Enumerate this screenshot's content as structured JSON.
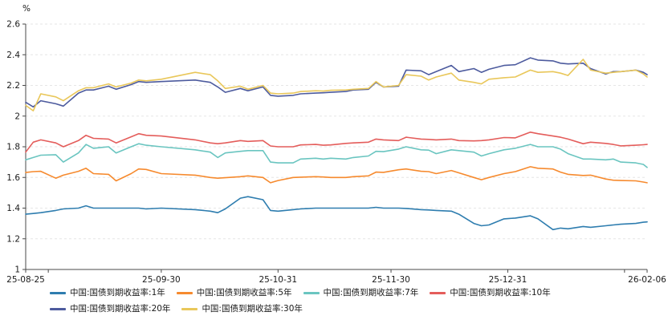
{
  "chart_data": {
    "type": "line",
    "title": "",
    "unit_label": "%",
    "xlabel": "",
    "ylabel": "",
    "ylim": [
      1,
      2.6
    ],
    "yticks": [
      "1",
      "1.2",
      "1.4",
      "1.6",
      "1.8",
      "2",
      "2.2",
      "2.4",
      "2.6"
    ],
    "grid": "horizontal-dashed",
    "legend_position": "bottom-left",
    "x_domain": [
      "25-08-25",
      "26-02-06"
    ],
    "xticks": [
      {
        "date": "25-08-25",
        "label": "25-08-25"
      },
      {
        "date": "25-08-31",
        "label": ""
      },
      {
        "date": "25-09-30",
        "label": "25-09-30"
      },
      {
        "date": "25-10-31",
        "label": "25-10-31"
      },
      {
        "date": "25-11-30",
        "label": "25-11-30"
      },
      {
        "date": "25-12-31",
        "label": "25-12-31"
      },
      {
        "date": "26-01-31",
        "label": ""
      },
      {
        "date": "26-02-06",
        "label": "26-02-06"
      }
    ],
    "x_dates": [
      "25-08-25",
      "25-08-27",
      "25-08-29",
      "25-09-02",
      "25-09-04",
      "25-09-08",
      "25-09-10",
      "25-09-12",
      "25-09-16",
      "25-09-18",
      "25-09-22",
      "25-09-24",
      "25-09-26",
      "25-09-30",
      "25-10-09",
      "25-10-13",
      "25-10-15",
      "25-10-17",
      "25-10-21",
      "25-10-23",
      "25-10-27",
      "25-10-29",
      "25-10-31",
      "25-11-04",
      "25-11-06",
      "25-11-10",
      "25-11-12",
      "25-11-14",
      "25-11-18",
      "25-11-20",
      "25-11-24",
      "25-11-26",
      "25-11-28",
      "25-12-02",
      "25-12-04",
      "25-12-08",
      "25-12-10",
      "25-12-12",
      "25-12-16",
      "25-12-18",
      "25-12-22",
      "25-12-24",
      "25-12-26",
      "25-12-30",
      "26-01-02",
      "26-01-06",
      "26-01-08",
      "26-01-12",
      "26-01-14",
      "26-01-16",
      "26-01-20",
      "26-01-22",
      "26-01-26",
      "26-01-28",
      "26-01-30",
      "26-02-03",
      "26-02-05",
      "26-02-06"
    ],
    "series": [
      {
        "id": "1y",
        "name": "中国:国债到期收益率:1年",
        "color": "#2e7daf",
        "values": [
          1.36,
          1.365,
          1.37,
          1.385,
          1.395,
          1.4,
          1.415,
          1.4,
          1.4,
          1.4,
          1.4,
          1.4,
          1.395,
          1.4,
          1.39,
          1.38,
          1.37,
          1.395,
          1.465,
          1.475,
          1.455,
          1.385,
          1.38,
          1.39,
          1.395,
          1.4,
          1.4,
          1.4,
          1.4,
          1.4,
          1.4,
          1.405,
          1.4,
          1.4,
          1.398,
          1.39,
          1.388,
          1.385,
          1.38,
          1.36,
          1.3,
          1.285,
          1.29,
          1.33,
          1.335,
          1.35,
          1.33,
          1.26,
          1.27,
          1.265,
          1.28,
          1.275,
          1.285,
          1.29,
          1.295,
          1.3,
          1.308,
          1.31
        ]
      },
      {
        "id": "5y",
        "name": "中国:国债到期收益率:5年",
        "color": "#f68a2e",
        "values": [
          1.632,
          1.638,
          1.64,
          1.595,
          1.615,
          1.64,
          1.66,
          1.625,
          1.62,
          1.578,
          1.625,
          1.655,
          1.652,
          1.625,
          1.615,
          1.6,
          1.595,
          1.598,
          1.605,
          1.61,
          1.6,
          1.565,
          1.58,
          1.6,
          1.602,
          1.605,
          1.603,
          1.6,
          1.6,
          1.605,
          1.61,
          1.635,
          1.633,
          1.65,
          1.655,
          1.64,
          1.638,
          1.625,
          1.645,
          1.63,
          1.6,
          1.585,
          1.6,
          1.625,
          1.638,
          1.67,
          1.66,
          1.655,
          1.635,
          1.62,
          1.613,
          1.615,
          1.59,
          1.582,
          1.58,
          1.578,
          1.57,
          1.565
        ]
      },
      {
        "id": "7y",
        "name": "中国:国债到期收益率:7年",
        "color": "#6ac5c0",
        "values": [
          1.715,
          1.73,
          1.745,
          1.748,
          1.7,
          1.76,
          1.815,
          1.79,
          1.8,
          1.76,
          1.8,
          1.82,
          1.81,
          1.8,
          1.78,
          1.765,
          1.73,
          1.76,
          1.77,
          1.775,
          1.775,
          1.7,
          1.695,
          1.695,
          1.72,
          1.725,
          1.72,
          1.725,
          1.72,
          1.73,
          1.74,
          1.77,
          1.768,
          1.785,
          1.8,
          1.78,
          1.778,
          1.755,
          1.78,
          1.775,
          1.765,
          1.74,
          1.755,
          1.78,
          1.79,
          1.815,
          1.8,
          1.8,
          1.785,
          1.755,
          1.72,
          1.72,
          1.715,
          1.72,
          1.7,
          1.695,
          1.685,
          1.665
        ]
      },
      {
        "id": "10y",
        "name": "中国:国债到期收益率:10年",
        "color": "#e45d5b",
        "values": [
          1.765,
          1.83,
          1.845,
          1.825,
          1.8,
          1.84,
          1.875,
          1.855,
          1.85,
          1.825,
          1.865,
          1.885,
          1.875,
          1.87,
          1.845,
          1.825,
          1.82,
          1.825,
          1.84,
          1.835,
          1.84,
          1.805,
          1.8,
          1.8,
          1.812,
          1.815,
          1.81,
          1.812,
          1.822,
          1.825,
          1.83,
          1.85,
          1.845,
          1.84,
          1.862,
          1.85,
          1.848,
          1.845,
          1.85,
          1.84,
          1.838,
          1.84,
          1.845,
          1.86,
          1.858,
          1.895,
          1.885,
          1.87,
          1.862,
          1.85,
          1.82,
          1.83,
          1.822,
          1.815,
          1.806,
          1.81,
          1.813,
          1.815
        ]
      },
      {
        "id": "20y",
        "name": "中国:国债到期收益率:20年",
        "color": "#4d5b9e",
        "values": [
          2.09,
          2.06,
          2.1,
          2.08,
          2.065,
          2.15,
          2.17,
          2.17,
          2.195,
          2.175,
          2.205,
          2.225,
          2.22,
          2.225,
          2.235,
          2.22,
          2.19,
          2.155,
          2.18,
          2.165,
          2.19,
          2.135,
          2.13,
          2.135,
          2.145,
          2.15,
          2.152,
          2.155,
          2.16,
          2.17,
          2.175,
          2.22,
          2.19,
          2.195,
          2.3,
          2.295,
          2.27,
          2.29,
          2.33,
          2.29,
          2.31,
          2.285,
          2.305,
          2.33,
          2.335,
          2.38,
          2.365,
          2.36,
          2.345,
          2.34,
          2.345,
          2.31,
          2.275,
          2.29,
          2.29,
          2.3,
          2.285,
          2.27
        ]
      },
      {
        "id": "30y",
        "name": "中国:国债到期收益率:30年",
        "color": "#e9c75a",
        "values": [
          2.07,
          2.035,
          2.145,
          2.125,
          2.1,
          2.165,
          2.185,
          2.185,
          2.21,
          2.19,
          2.215,
          2.235,
          2.23,
          2.24,
          2.285,
          2.27,
          2.23,
          2.18,
          2.195,
          2.175,
          2.2,
          2.15,
          2.145,
          2.15,
          2.16,
          2.165,
          2.163,
          2.168,
          2.17,
          2.175,
          2.18,
          2.225,
          2.19,
          2.2,
          2.27,
          2.26,
          2.235,
          2.255,
          2.28,
          2.235,
          2.22,
          2.21,
          2.24,
          2.25,
          2.255,
          2.3,
          2.285,
          2.29,
          2.28,
          2.265,
          2.37,
          2.3,
          2.28,
          2.285,
          2.29,
          2.3,
          2.275,
          2.255
        ]
      }
    ],
    "style": {
      "grid_color": "#e6e6e6",
      "axis_color": "#4a4a4a",
      "text_color": "#1a1a1a",
      "line_width": 1.6
    }
  }
}
